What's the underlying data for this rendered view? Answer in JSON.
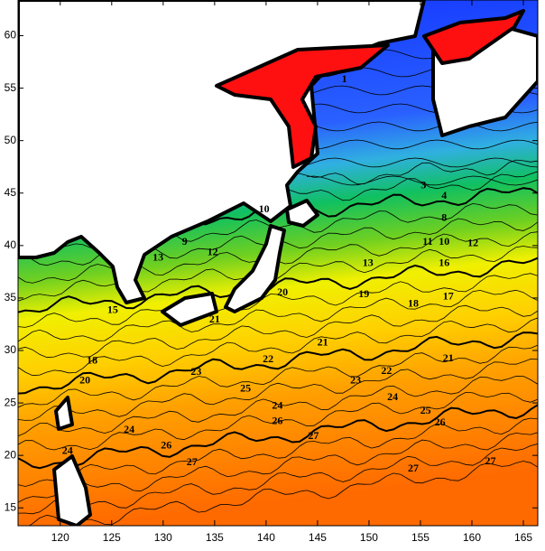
{
  "map": {
    "xlim": [
      115.9,
      166.4
    ],
    "ylim": [
      13.3,
      63.4
    ],
    "xticks": [
      120,
      125,
      130,
      135,
      140,
      145,
      150,
      155,
      160,
      165
    ],
    "yticks": [
      15,
      20,
      25,
      30,
      35,
      40,
      45,
      50,
      55,
      60
    ],
    "contour_labels": [
      {
        "label": "21",
        "lon": 145.5,
        "lat": 30.7
      },
      {
        "label": "22",
        "lon": 140.2,
        "lat": 29.1
      },
      {
        "label": "22",
        "lon": 151.7,
        "lat": 28.0
      },
      {
        "label": "23",
        "lon": 133.2,
        "lat": 27.9
      },
      {
        "label": "23",
        "lon": 148.7,
        "lat": 27.1
      },
      {
        "label": "24",
        "lon": 152.3,
        "lat": 25.5
      },
      {
        "label": "24",
        "lon": 141.1,
        "lat": 24.7
      },
      {
        "label": "25",
        "lon": 138.0,
        "lat": 26.3
      },
      {
        "label": "25",
        "lon": 155.5,
        "lat": 24.2
      },
      {
        "label": "26",
        "lon": 156.9,
        "lat": 23.1
      },
      {
        "label": "26",
        "lon": 141.1,
        "lat": 23.2
      },
      {
        "label": "24",
        "lon": 126.7,
        "lat": 22.4
      },
      {
        "label": "26",
        "lon": 130.3,
        "lat": 20.9
      },
      {
        "label": "27",
        "lon": 144.6,
        "lat": 21.8
      },
      {
        "label": "27",
        "lon": 132.8,
        "lat": 19.3
      },
      {
        "label": "27",
        "lon": 154.3,
        "lat": 18.7
      },
      {
        "label": "19",
        "lon": 149.5,
        "lat": 35.3
      },
      {
        "label": "18",
        "lon": 154.3,
        "lat": 34.4
      },
      {
        "label": "17",
        "lon": 157.7,
        "lat": 35.1
      },
      {
        "label": "16",
        "lon": 157.3,
        "lat": 38.3
      },
      {
        "label": "13",
        "lon": 149.9,
        "lat": 38.3
      },
      {
        "label": "12",
        "lon": 160.1,
        "lat": 40.2
      },
      {
        "label": "10",
        "lon": 157.3,
        "lat": 40.3
      },
      {
        "label": "11",
        "lon": 155.7,
        "lat": 40.3
      },
      {
        "label": "8",
        "lon": 157.3,
        "lat": 42.6
      },
      {
        "label": "4",
        "lon": 157.3,
        "lat": 44.7
      },
      {
        "label": "3",
        "lon": 155.3,
        "lat": 45.7
      },
      {
        "label": "1",
        "lon": 147.6,
        "lat": 55.8
      },
      {
        "label": "20",
        "lon": 122.4,
        "lat": 27.1
      },
      {
        "label": "18",
        "lon": 123.1,
        "lat": 29.0
      },
      {
        "label": "15",
        "lon": 125.1,
        "lat": 33.8
      },
      {
        "label": "13",
        "lon": 129.5,
        "lat": 38.8
      },
      {
        "label": "12",
        "lon": 134.8,
        "lat": 39.3
      },
      {
        "label": "9",
        "lon": 132.1,
        "lat": 40.3
      },
      {
        "label": "21",
        "lon": 135.0,
        "lat": 32.9
      },
      {
        "label": "20",
        "lon": 141.6,
        "lat": 35.5
      },
      {
        "label": "10",
        "lon": 139.8,
        "lat": 43.4
      },
      {
        "label": "21",
        "lon": 157.7,
        "lat": 29.2
      },
      {
        "label": "27",
        "lon": 161.8,
        "lat": 19.4
      },
      {
        "label": "24",
        "lon": 120.7,
        "lat": 20.4
      }
    ]
  }
}
